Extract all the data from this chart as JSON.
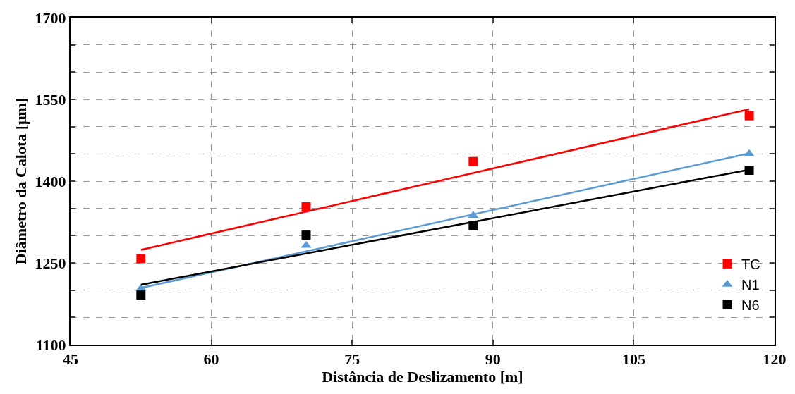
{
  "chart_data": {
    "type": "scatter",
    "xlabel": "Distância de Deslizamento [m]",
    "ylabel": "Diâmetro da Calota [μm]",
    "xlim": [
      45,
      120
    ],
    "xticks": [
      45,
      60,
      75,
      90,
      105,
      120
    ],
    "ylim": [
      1100,
      1700
    ],
    "yticks": [
      1100,
      {
        "value": 1150,
        "label": null
      },
      {
        "value": 1200,
        "label": null
      },
      1250,
      {
        "value": 1300,
        "label": null
      },
      {
        "value": 1350,
        "label": null
      },
      1400,
      {
        "value": 1450,
        "label": null
      },
      {
        "value": 1500,
        "label": null
      },
      1550,
      {
        "value": 1600,
        "label": null
      },
      {
        "value": 1650,
        "label": null
      },
      1700
    ],
    "grid": true,
    "legend": "bottom right",
    "series": [
      {
        "name": "TC",
        "color": "#ff0000",
        "marker": "square",
        "x": [
          52.5,
          70.1,
          87.9,
          117.3
        ],
        "values": [
          1258,
          1353,
          1436,
          1520
        ]
      },
      {
        "name": "N1",
        "color": "#5b9bd5",
        "marker": "triangle",
        "x": [
          52.5,
          70.1,
          87.9,
          117.3
        ],
        "values": [
          1203,
          1282,
          1337,
          1450
        ]
      },
      {
        "name": "N6",
        "color": "#000000",
        "marker": "square",
        "x": [
          52.5,
          70.1,
          87.9,
          117.3
        ],
        "values": [
          1191,
          1301,
          1318,
          1420
        ]
      },
      {
        "type": "line",
        "color": "#ff0000",
        "marker": "none",
        "x": [
          52.5,
          117.3
        ],
        "values": [
          1274,
          1532
        ]
      },
      {
        "type": "line",
        "color": "#5b9bd5",
        "marker": "none",
        "x": [
          52.5,
          117.3
        ],
        "values": [
          1204,
          1451
        ]
      },
      {
        "type": "line",
        "color": "#000000",
        "marker": "none",
        "x": [
          52.5,
          117.3
        ],
        "values": [
          1210,
          1421
        ]
      }
    ]
  }
}
